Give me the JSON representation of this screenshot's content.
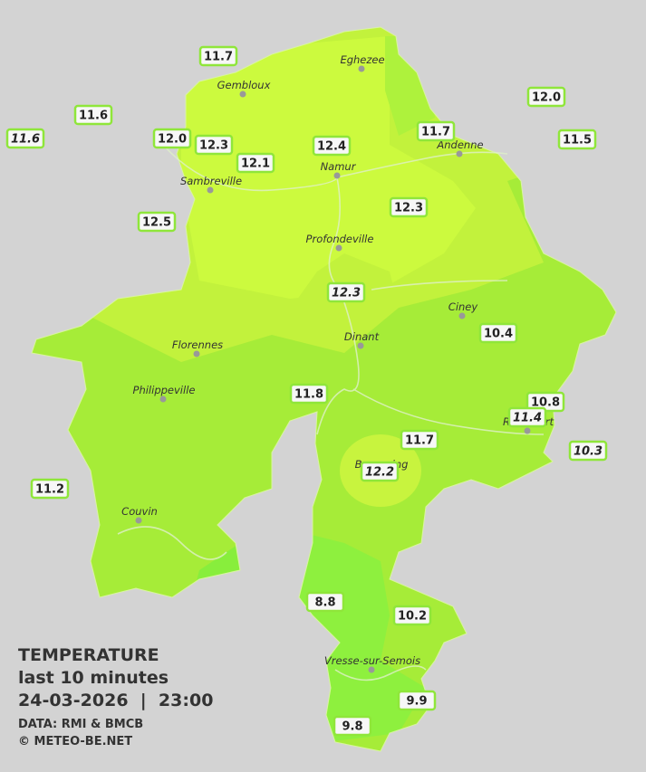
{
  "legend": {
    "title": "TEMPERATURE",
    "subtitle": "last 10 minutes",
    "datetime": "24-03-2026  |  23:00",
    "source": "DATA: RMI & BMCB",
    "credit": "© METEO-BE.NET"
  },
  "cities": [
    "Eghezee",
    "Gembloux",
    "Andenne",
    "Namur",
    "Sambreville",
    "Profondeville",
    "Ciney",
    "Dinant",
    "Florennes",
    "Philippeville",
    "Rochefort",
    "Beauraing",
    "Couvin",
    "Vresse-sur-Semois"
  ],
  "stations": [
    "11.7",
    "11.6",
    "11.6",
    "12.0",
    "12.3",
    "12.1",
    "12.4",
    "11.7",
    "12.0",
    "11.5",
    "12.5",
    "12.3",
    "12.3",
    "10.4",
    "11.8",
    "10.8",
    "11.4",
    "10.3",
    "11.7",
    "12.2",
    "11.2",
    "8.8",
    "10.2",
    "9.9",
    "9.8"
  ]
}
